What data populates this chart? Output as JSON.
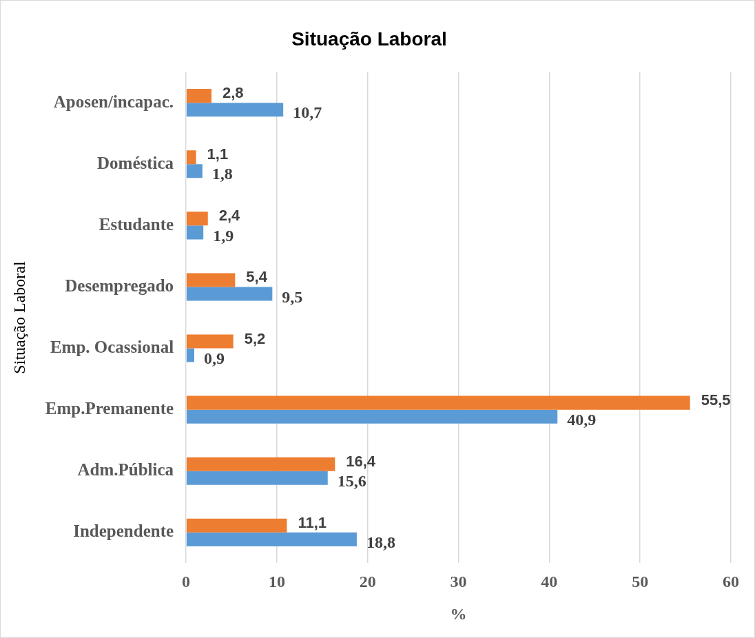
{
  "chart_data": {
    "type": "bar",
    "orientation": "horizontal",
    "title": "Situação Laboral",
    "xlabel": "%",
    "ylabel": "Situação Laboral",
    "categories": [
      "Aposen/incapac.",
      "Doméstica",
      "Estudante",
      "Desempregado",
      "Emp. Ocassional",
      "Emp.Premanente",
      "Adm.Pública",
      "Independente"
    ],
    "series": [
      {
        "color": "#ed7d31",
        "values": [
          2.8,
          1.1,
          2.4,
          5.4,
          5.2,
          55.5,
          16.4,
          11.1
        ],
        "value_labels": [
          "2,8",
          "1,1",
          "2,4",
          "5,4",
          "5,2",
          "55,5",
          "16,4",
          "11,1"
        ]
      },
      {
        "color": "#5b9bd5",
        "values": [
          10.7,
          1.8,
          1.9,
          9.5,
          0.9,
          40.9,
          15.6,
          18.8
        ],
        "value_labels": [
          "10,7",
          "1,8",
          "1,9",
          "9,5",
          "0,9",
          "40,9",
          "15,6",
          "18,8"
        ]
      }
    ],
    "xlim": [
      0,
      60
    ],
    "xticks": [
      0,
      10,
      20,
      30,
      40,
      50,
      60
    ],
    "grid": "x",
    "legend": false
  }
}
